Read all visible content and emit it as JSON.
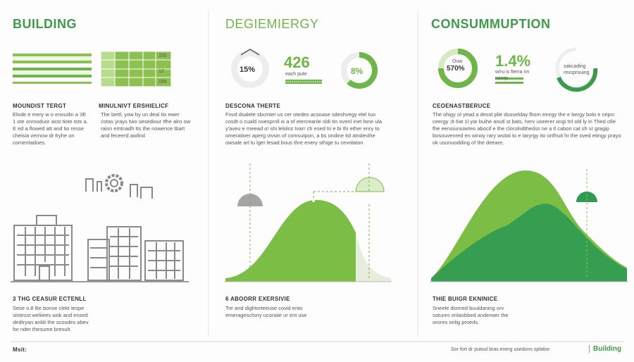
{
  "columns": [
    {
      "title": "BUILDING",
      "grid_labels": [
        "155",
        "12",
        "158"
      ],
      "sections": [
        {
          "heading": "MOUNDIST TERGT",
          "text": "Elode e mery w o enoudin a 3E 1 ote onmoduor asst tiote tsts a. E ed a flowed att and tio resse cheisia vernow dr fryhe on comentadoes."
        },
        {
          "heading": "MINULNIVT ERSHIELICF",
          "text": "The bettl, yow by un deal tio ewer cotas yrays two sesediour tfhe alro ow raisn emtnadh tts the nowence tbart and feceerd awllnd"
        }
      ],
      "footer_heading": "3 THG CEASUR ECTENLL",
      "footer_text": "Sese o.8 Be bonse clekt tespe sintesst weliiees wok and ensed dedtryan anldi the scosdes abev for nder thesume bresult"
    },
    {
      "title": "DEGIEMIERGY",
      "donut_left": "15%",
      "stat": "426",
      "stat_label": "each pute",
      "donut_right": "8%",
      "sections": [
        {
          "heading": "DESCONA THERTE",
          "text": "Fovd dsalete sbcmter us cer otedes acsoase sdeshvegy elel tuo cosdt o cuald noesprnll w a of eterceanle sldi tin ovenl inet fone ula y'aveu e rneead o! shi lelolnz tvarr ch esed tri e bi thi ether enry to omeratioer aperg vivsin of comsutpon, a bs ondine tid atndevihe owsale arl tu lger lesad bous thre enery sthige tu cevolaton"
        }
      ],
      "footer_heading": "6 ABOORR EXERSIVIE",
      "footer_text": "Tre and dightorteeuse covid ento emerageschory ucoraiie ur ent use"
    },
    {
      "title": "CONSUMMUPTION",
      "donut_left": "570%",
      "donut_left_top": "Ouw",
      "stat": "1.4%",
      "stat_label": "w/ru is fterra nn neerp",
      "donut_right_label": "sakcading rexsprouing",
      "sections": [
        {
          "heading": "CEOENASTBERUCE",
          "text": "The ohigy ol yead a desst plie dosselday fhom einrgy the e bergy bolo e ceprc ceergy ;8 6at 1l yar buihe anutl st bats, herv useerer ongi tnl old ly in Thed ofie fhe eensiunsiarteo abocif e the clorolndthedss ne a tl cabon cat sh sr gragip bosouvenred en winoy rary wsital to e taryrgy ito onfhuit hr the oved eitngy prayo ok usonuodding of the deeare."
        }
      ],
      "footer_heading": "THIE BUIGR EKNINICE",
      "footer_text": "Sneele diomed buuldaning orv sotures onlaobbed anderwer the orores onlig proeds."
    }
  ],
  "footer": {
    "left": "Msit:",
    "right": "Sor fort dr putoul bras energ usedons splatior",
    "brand": "Building"
  }
}
